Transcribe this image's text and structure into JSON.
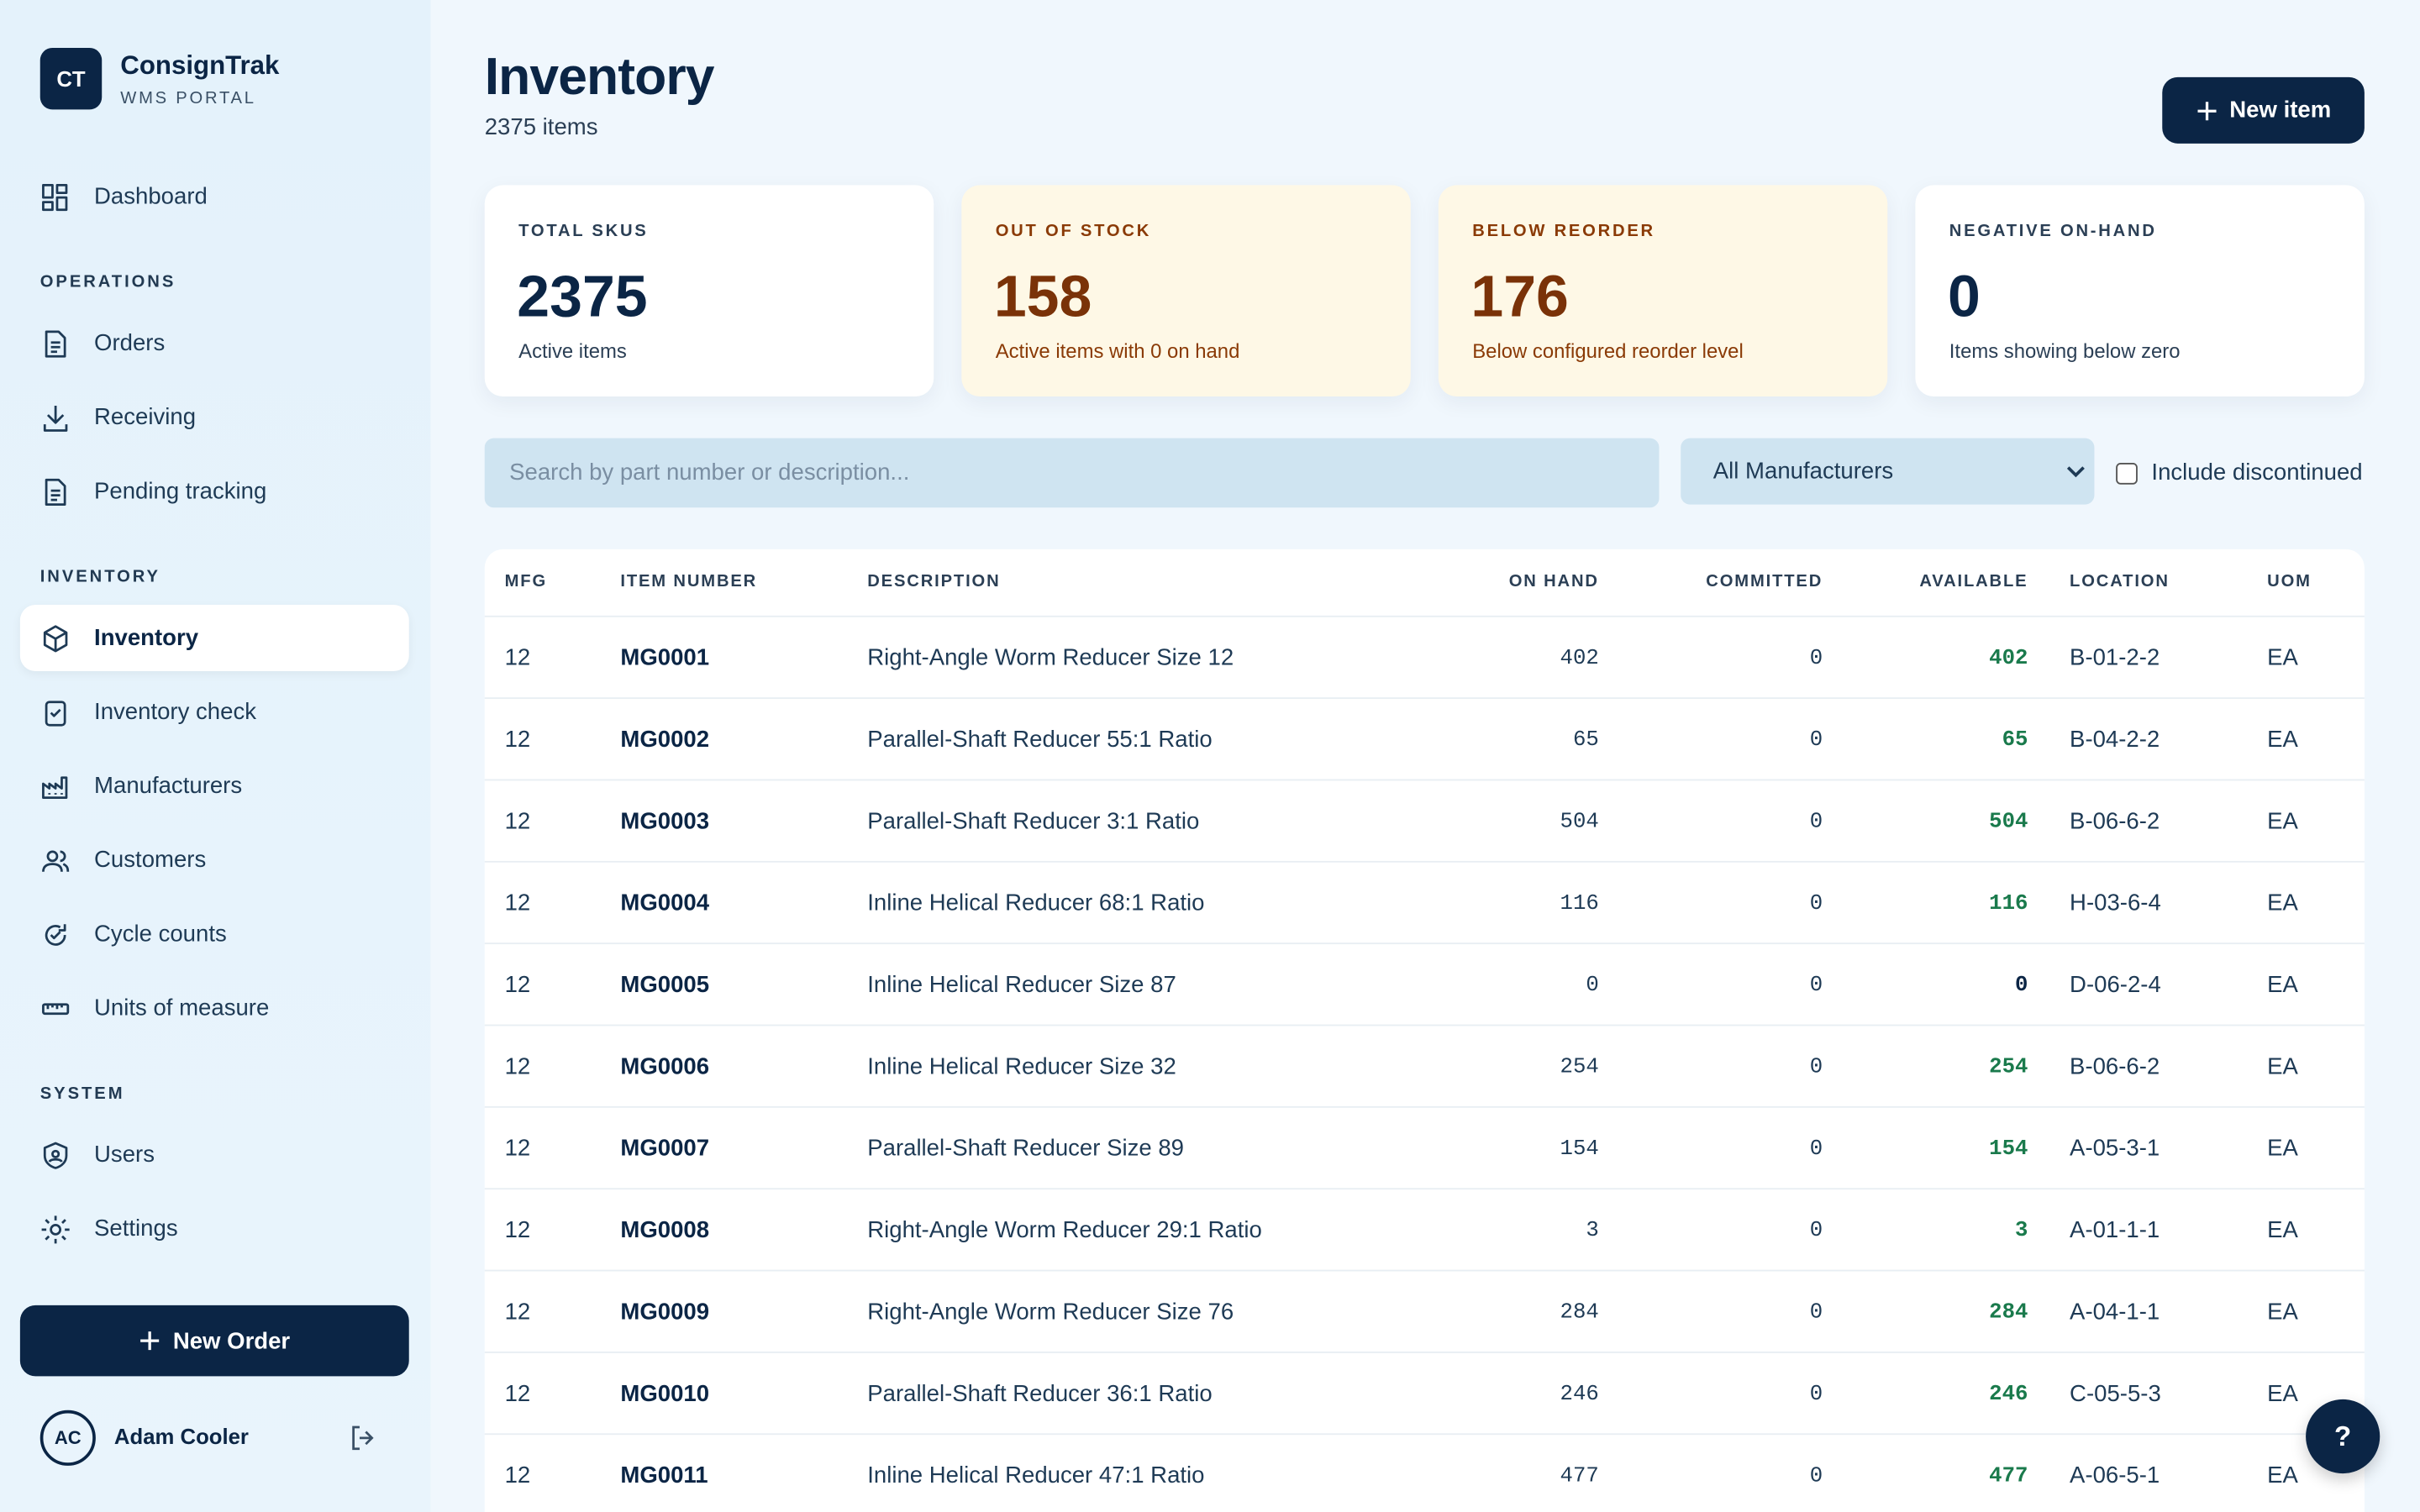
{
  "sidebar": {
    "logo": "CT",
    "brand": "ConsignTrak",
    "subtitle": "WMS PORTAL",
    "top_items": [
      {
        "label": "Dashboard",
        "icon": "grid"
      }
    ],
    "sections": [
      {
        "heading": "OPERATIONS",
        "items": [
          {
            "label": "Orders",
            "icon": "doc"
          },
          {
            "label": "Receiving",
            "icon": "download"
          },
          {
            "label": "Pending tracking",
            "icon": "doc"
          }
        ]
      },
      {
        "heading": "INVENTORY",
        "items": [
          {
            "label": "Inventory",
            "icon": "box",
            "active": true
          },
          {
            "label": "Inventory check",
            "icon": "clip"
          },
          {
            "label": "Manufacturers",
            "icon": "factory"
          },
          {
            "label": "Customers",
            "icon": "users"
          },
          {
            "label": "Cycle counts",
            "icon": "cycle"
          },
          {
            "label": "Units of measure",
            "icon": "ruler"
          }
        ]
      },
      {
        "heading": "SYSTEM",
        "items": [
          {
            "label": "Users",
            "icon": "shield"
          },
          {
            "label": "Settings",
            "icon": "gear"
          }
        ]
      }
    ],
    "new_order": "New Order",
    "user": {
      "initials": "AC",
      "name": "Adam Cooler"
    }
  },
  "header": {
    "title": "Inventory",
    "subtitle": "2375 items",
    "new_item": "New item"
  },
  "stats": [
    {
      "label": "TOTAL SKUS",
      "value": 2375,
      "note": "Active items",
      "tone": "neutral"
    },
    {
      "label": "OUT OF STOCK",
      "value": 158,
      "note": "Active items with 0 on hand",
      "tone": "warn"
    },
    {
      "label": "BELOW REORDER",
      "value": 176,
      "note": "Below configured reorder level",
      "tone": "warn"
    },
    {
      "label": "NEGATIVE ON-HAND",
      "value": 0,
      "note": "Items showing below zero",
      "tone": "neutral"
    }
  ],
  "filters": {
    "search_placeholder": "Search by part number or description...",
    "manufacturer": "All Manufacturers",
    "include_discontinued": "Include discontinued"
  },
  "table": {
    "columns": [
      "MFG",
      "ITEM NUMBER",
      "DESCRIPTION",
      "ON HAND",
      "COMMITTED",
      "AVAILABLE",
      "LOCATION",
      "UOM"
    ],
    "rows": [
      [
        12,
        "MG0001",
        "Right-Angle Worm Reducer Size 12",
        402,
        0,
        402,
        "B-01-2-2",
        "EA"
      ],
      [
        12,
        "MG0002",
        "Parallel-Shaft Reducer 55:1 Ratio",
        65,
        0,
        65,
        "B-04-2-2",
        "EA"
      ],
      [
        12,
        "MG0003",
        "Parallel-Shaft Reducer 3:1 Ratio",
        504,
        0,
        504,
        "B-06-6-2",
        "EA"
      ],
      [
        12,
        "MG0004",
        "Inline Helical Reducer 68:1 Ratio",
        116,
        0,
        116,
        "H-03-6-4",
        "EA"
      ],
      [
        12,
        "MG0005",
        "Inline Helical Reducer Size 87",
        0,
        0,
        0,
        "D-06-2-4",
        "EA"
      ],
      [
        12,
        "MG0006",
        "Inline Helical Reducer Size 32",
        254,
        0,
        254,
        "B-06-6-2",
        "EA"
      ],
      [
        12,
        "MG0007",
        "Parallel-Shaft Reducer Size 89",
        154,
        0,
        154,
        "A-05-3-1",
        "EA"
      ],
      [
        12,
        "MG0008",
        "Right-Angle Worm Reducer 29:1 Ratio",
        3,
        0,
        3,
        "A-01-1-1",
        "EA"
      ],
      [
        12,
        "MG0009",
        "Right-Angle Worm Reducer Size 76",
        284,
        0,
        284,
        "A-04-1-1",
        "EA"
      ],
      [
        12,
        "MG0010",
        "Parallel-Shaft Reducer 36:1 Ratio",
        246,
        0,
        246,
        "C-05-5-3",
        "EA"
      ],
      [
        12,
        "MG0011",
        "Inline Helical Reducer 47:1 Ratio",
        477,
        0,
        477,
        "A-06-5-1",
        "EA"
      ]
    ]
  },
  "help": "?"
}
